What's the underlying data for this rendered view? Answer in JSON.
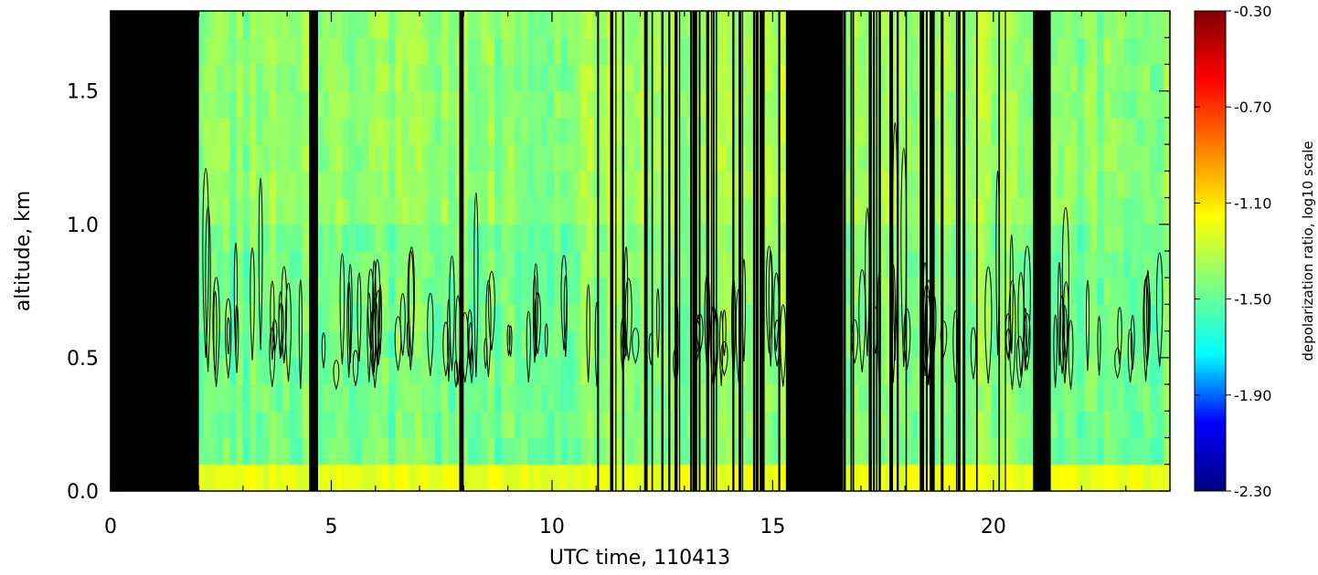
{
  "chart_data": {
    "type": "heatmap",
    "title": "",
    "xlabel": "UTC time, 110413",
    "ylabel": "altitude, km",
    "xlim": [
      0,
      24
    ],
    "ylim": [
      0,
      1.8
    ],
    "x_ticks": [
      0,
      5,
      10,
      15,
      20
    ],
    "x_tick_labels": [
      "0",
      "5",
      "10",
      "15",
      "20"
    ],
    "y_ticks": [
      0.0,
      0.5,
      1.0,
      1.5
    ],
    "y_tick_labels": [
      "0.0",
      "0.5",
      "1.0",
      "1.5"
    ],
    "colorbar": {
      "label": "depolarization ratio, log10 scale",
      "range": [
        -2.3,
        -0.3
      ],
      "ticks": [
        -0.3,
        -0.7,
        -1.1,
        -1.5,
        -1.9,
        -2.3
      ],
      "tick_labels": [
        "-0.30",
        "-0.70",
        "-1.10",
        "-1.50",
        "-1.90",
        "-2.30"
      ],
      "colormap": [
        "#00007f",
        "#0000ff",
        "#00ffff",
        "#7fff7f",
        "#ffff00",
        "#ff7f00",
        "#ff0000",
        "#7f0000"
      ]
    },
    "no_data_intervals": [
      [
        0,
        2.0
      ],
      [
        4.5,
        4.7
      ],
      [
        7.9,
        8.0
      ],
      [
        15.3,
        16.6
      ],
      [
        20.9,
        21.3
      ]
    ],
    "background_value": -1.45,
    "contour_color": "#000000"
  }
}
